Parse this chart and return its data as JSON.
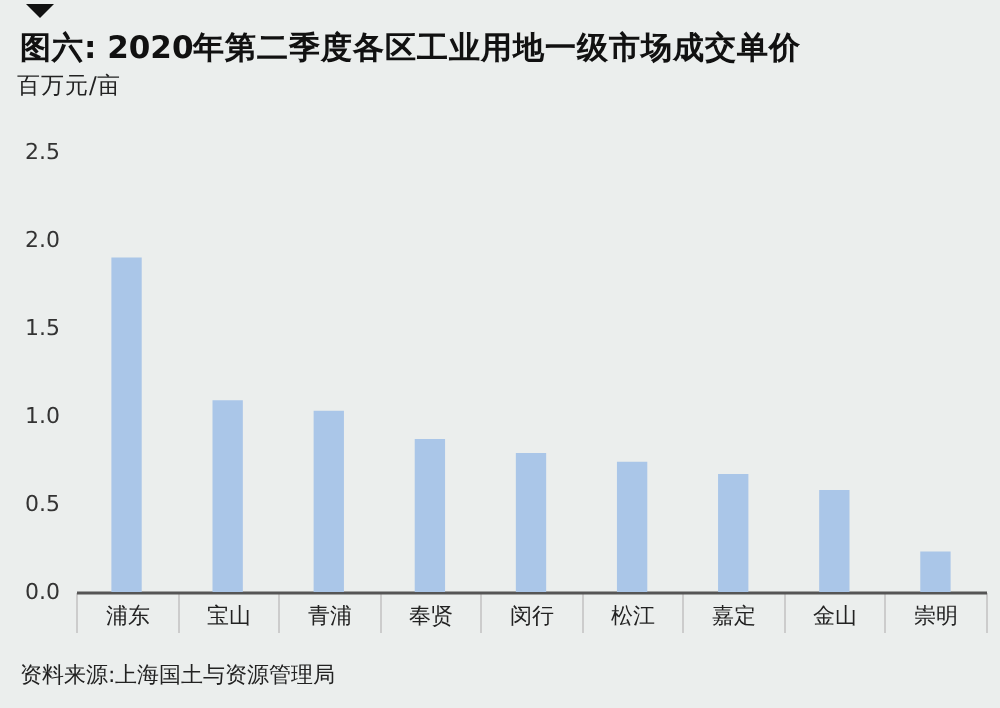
{
  "chart_data": {
    "type": "bar",
    "title": "图六: 2020年第二季度各区工业用地一级市场成交单价",
    "ylabel": "百万元/亩",
    "categories": [
      "浦东",
      "宝山",
      "青浦",
      "奉贤",
      "闵行",
      "松江",
      "嘉定",
      "金山",
      "崇明"
    ],
    "values": [
      1.9,
      1.09,
      1.03,
      0.87,
      0.79,
      0.74,
      0.67,
      0.58,
      0.23
    ],
    "color": "#aac6e8",
    "ylim": [
      0,
      2.5
    ],
    "yticks": [
      {
        "value": 0,
        "label": "0.0"
      },
      0.5,
      {
        "value": 1,
        "label": "1.0"
      },
      1.5,
      {
        "value": 2,
        "label": "2.0"
      },
      2.5
    ],
    "grid": false,
    "annotations": [
      "资料来源:上海国土与资源管理局"
    ]
  }
}
